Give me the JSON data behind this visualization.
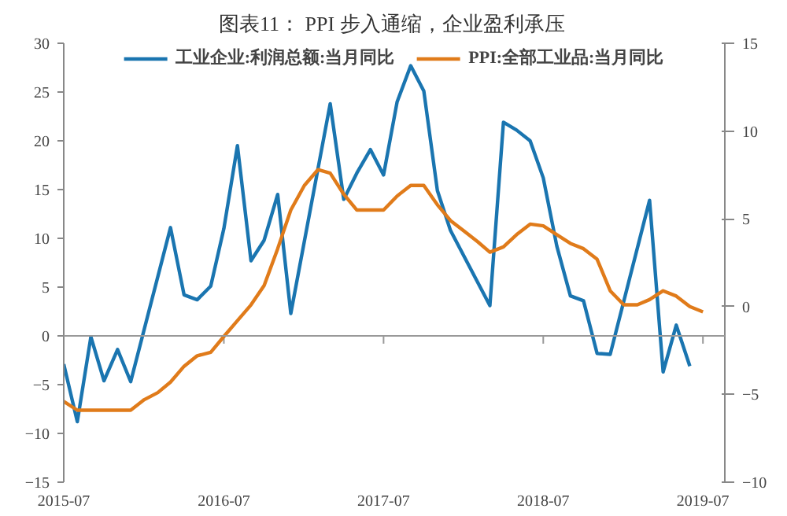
{
  "chart_data": {
    "type": "line",
    "title": "图表11：  PPI 步入通缩，企业盈利承压",
    "x": [
      "2015-07",
      "2015-08",
      "2015-09",
      "2015-10",
      "2015-11",
      "2015-12",
      "2016-01",
      "2016-02",
      "2016-03",
      "2016-04",
      "2016-05",
      "2016-06",
      "2016-07",
      "2016-08",
      "2016-09",
      "2016-10",
      "2016-11",
      "2016-12",
      "2017-01",
      "2017-02",
      "2017-03",
      "2017-04",
      "2017-05",
      "2017-06",
      "2017-07",
      "2017-08",
      "2017-09",
      "2017-10",
      "2017-11",
      "2017-12",
      "2018-01",
      "2018-02",
      "2018-03",
      "2018-04",
      "2018-05",
      "2018-06",
      "2018-07",
      "2018-08",
      "2018-09",
      "2018-10",
      "2018-11",
      "2018-12",
      "2019-01",
      "2019-02",
      "2019-03",
      "2019-04",
      "2019-05",
      "2019-06",
      "2019-07"
    ],
    "series": [
      {
        "name": "工业企业:利润总额:当月同比",
        "color": "#1a75b0",
        "x": [
          "2015-07",
          "2015-08",
          "2015-09",
          "2015-10",
          "2015-11",
          "2015-12",
          "2016-03",
          "2016-04",
          "2016-05",
          "2016-06",
          "2016-07",
          "2016-08",
          "2016-09",
          "2016-10",
          "2016-11",
          "2016-12",
          "2017-03",
          "2017-04",
          "2017-05",
          "2017-06",
          "2017-07",
          "2017-08",
          "2017-09",
          "2017-10",
          "2017-11",
          "2017-12",
          "2018-03",
          "2018-04",
          "2018-05",
          "2018-06",
          "2018-07",
          "2018-08",
          "2018-09",
          "2018-10",
          "2018-11",
          "2018-12",
          "2019-03",
          "2019-04",
          "2019-05",
          "2019-06"
        ],
        "values": [
          -2.9,
          -8.8,
          -0.1,
          -4.6,
          -1.4,
          -4.7,
          11.1,
          4.2,
          3.7,
          5.1,
          11.0,
          19.5,
          7.7,
          9.8,
          14.5,
          2.3,
          23.8,
          14.0,
          16.7,
          19.1,
          16.5,
          24.0,
          27.7,
          25.1,
          14.9,
          10.8,
          3.1,
          21.9,
          21.1,
          20.0,
          16.2,
          9.2,
          4.1,
          3.6,
          -1.8,
          -1.9,
          13.9,
          -3.7,
          1.1,
          -3.1
        ]
      },
      {
        "name": "PPI:全部工业品:当月同比",
        "color": "#e07b1a",
        "axis": "y2",
        "values": [
          -5.4,
          -5.9,
          -5.9,
          -5.9,
          -5.9,
          -5.9,
          -5.3,
          -4.9,
          -4.3,
          -3.4,
          -2.8,
          -2.6,
          -1.7,
          -0.8,
          0.1,
          1.2,
          3.3,
          5.5,
          6.9,
          7.8,
          7.6,
          6.4,
          5.5,
          5.5,
          5.5,
          6.3,
          6.9,
          6.9,
          5.8,
          4.9,
          4.3,
          3.7,
          3.1,
          3.4,
          4.1,
          4.7,
          4.6,
          4.1,
          3.6,
          3.3,
          2.7,
          0.9,
          0.1,
          0.1,
          0.4,
          0.9,
          0.6,
          0.0,
          -0.3
        ]
      }
    ],
    "xlim": [
      "2015-07",
      "2019-08-20"
    ],
    "xticks": [
      "2015-07",
      "2016-07",
      "2017-07",
      "2018-07",
      "2019-07"
    ],
    "ylim": [
      -15,
      30
    ],
    "yticks": [
      -15,
      -10,
      -5,
      0,
      5,
      10,
      15,
      20,
      25,
      30
    ],
    "y2lim": [
      -10,
      15
    ],
    "y2ticks": [
      -10,
      -5,
      0,
      5,
      10,
      15
    ],
    "legend": "top"
  }
}
